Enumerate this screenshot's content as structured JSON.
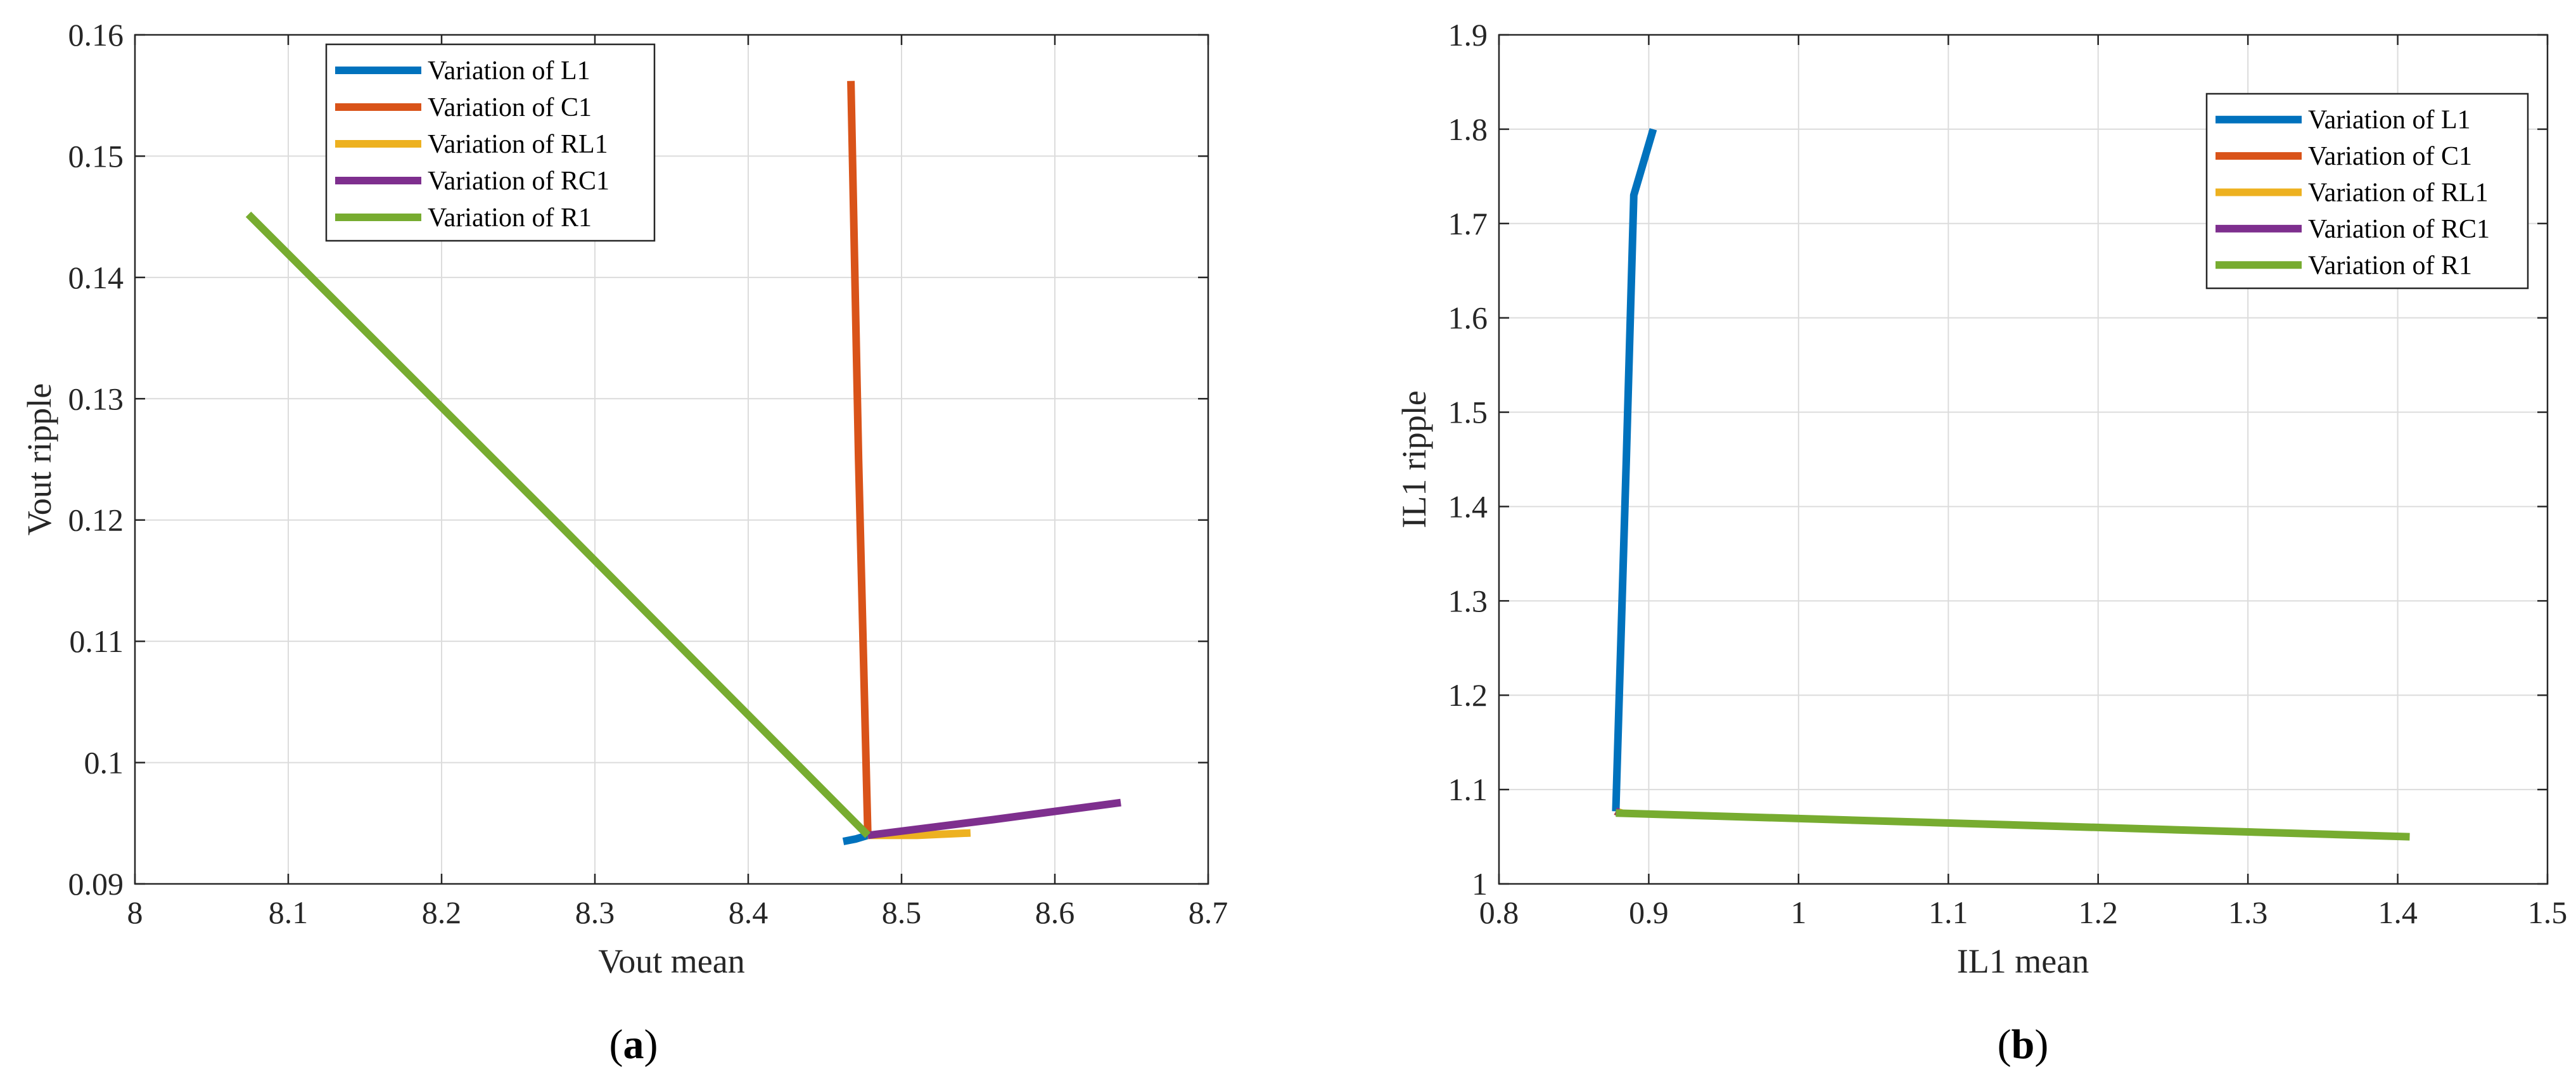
{
  "colors": {
    "L1": "#0072BD",
    "C1": "#D95319",
    "RL1": "#EDB120",
    "RC1": "#7E2F8E",
    "R1": "#77AC30"
  },
  "chart_data": [
    {
      "type": "line",
      "caption": "a",
      "xlabel": "Vout mean",
      "ylabel": "Vout ripple",
      "xlim": [
        8,
        8.7
      ],
      "ylim": [
        0.09,
        0.16
      ],
      "xticks": [
        8,
        8.1,
        8.2,
        8.3,
        8.4,
        8.5,
        8.6,
        8.7
      ],
      "xtick_labels": [
        "8",
        "8.1",
        "8.2",
        "8.3",
        "8.4",
        "8.5",
        "8.6",
        "8.7"
      ],
      "yticks": [
        0.09,
        0.1,
        0.11,
        0.12,
        0.13,
        0.14,
        0.15,
        0.16
      ],
      "ytick_labels": [
        "0.09",
        "0.1",
        "0.11",
        "0.12",
        "0.13",
        "0.14",
        "0.15",
        "0.16"
      ],
      "grid": true,
      "legend_position": "top-left",
      "series": [
        {
          "name": "Variation of L1",
          "color_key": "L1",
          "x": [
            8.462,
            8.47,
            8.478
          ],
          "y": [
            0.0935,
            0.0937,
            0.094
          ]
        },
        {
          "name": "Variation of C1",
          "color_key": "C1",
          "x": [
            8.467,
            8.472,
            8.478
          ],
          "y": [
            0.1562,
            0.125,
            0.094
          ]
        },
        {
          "name": "Variation of RL1",
          "color_key": "RL1",
          "x": [
            8.478,
            8.51,
            8.545
          ],
          "y": [
            0.094,
            0.094,
            0.0942
          ]
        },
        {
          "name": "Variation of RC1",
          "color_key": "RC1",
          "x": [
            8.478,
            8.56,
            8.643
          ],
          "y": [
            0.094,
            0.0953,
            0.0967
          ]
        },
        {
          "name": "Variation of R1",
          "color_key": "R1",
          "x": [
            8.074,
            8.28,
            8.478
          ],
          "y": [
            0.1452,
            0.1192,
            0.094
          ]
        }
      ]
    },
    {
      "type": "line",
      "caption": "b",
      "xlabel": "IL1 mean",
      "ylabel": "IL1 ripple",
      "xlim": [
        0.8,
        1.5
      ],
      "ylim": [
        1,
        1.9
      ],
      "xticks": [
        0.8,
        0.9,
        1,
        1.1,
        1.2,
        1.3,
        1.4,
        1.5
      ],
      "xtick_labels": [
        "0.8",
        "0.9",
        "1",
        "1.1",
        "1.2",
        "1.3",
        "1.4",
        "1.5"
      ],
      "yticks": [
        1,
        1.1,
        1.2,
        1.3,
        1.4,
        1.5,
        1.6,
        1.7,
        1.8,
        1.9
      ],
      "ytick_labels": [
        "1",
        "1.1",
        "1.2",
        "1.3",
        "1.4",
        "1.5",
        "1.6",
        "1.7",
        "1.8",
        "1.9"
      ],
      "grid": true,
      "legend_position": "top-right",
      "series": [
        {
          "name": "Variation of L1",
          "color_key": "L1",
          "x": [
            0.878,
            0.885,
            0.89,
            0.903
          ],
          "y": [
            1.077,
            1.45,
            1.73,
            1.8
          ]
        },
        {
          "name": "Variation of C1",
          "color_key": "C1",
          "x": [
            0.878,
            0.879
          ],
          "y": [
            1.077,
            1.076
          ]
        },
        {
          "name": "Variation of RL1",
          "color_key": "RL1",
          "x": [
            0.878,
            0.882
          ],
          "y": [
            1.077,
            1.075
          ]
        },
        {
          "name": "Variation of RC1",
          "color_key": "RC1",
          "x": [
            0.878,
            0.88
          ],
          "y": [
            1.077,
            1.076
          ]
        },
        {
          "name": "Variation of R1",
          "color_key": "R1",
          "x": [
            0.878,
            1.408
          ],
          "y": [
            1.075,
            1.05
          ]
        }
      ]
    }
  ]
}
